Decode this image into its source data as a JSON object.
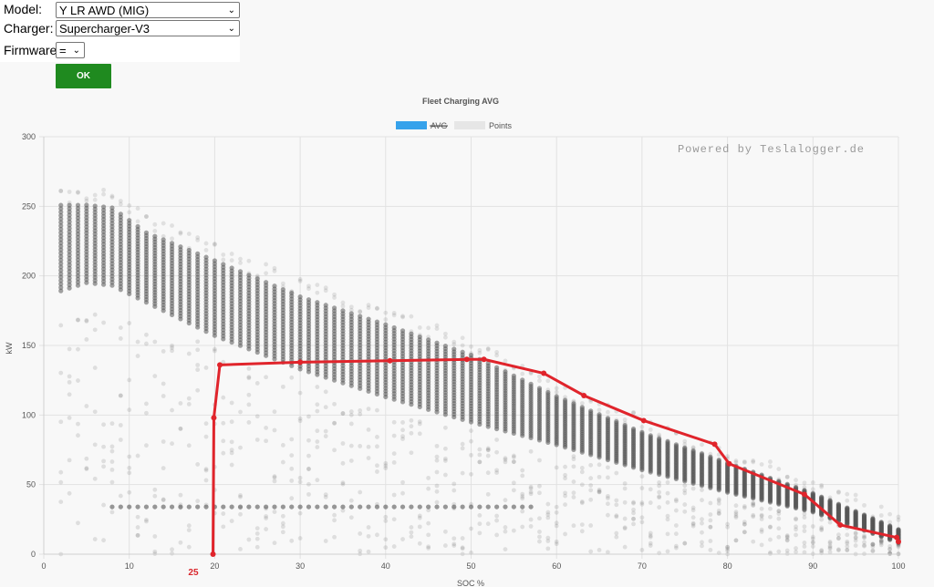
{
  "form": {
    "model_label": "Model:",
    "model_value": "Y LR AWD (MIG)",
    "charger_label": "Charger:",
    "charger_value": "Supercharger-V3",
    "firmware_label": "Firmware:",
    "firmware_value": "=",
    "ok_label": "OK"
  },
  "colors": {
    "avg_line": "#e0242b",
    "avg_legend": "#36a2eb",
    "points": "#555555",
    "ok_button": "#1f8a1f"
  },
  "chart_data": {
    "type": "scatter",
    "title": "Fleet Charging AVG",
    "watermark": "Powered by Teslalogger.de",
    "xlabel": "SOC %",
    "ylabel": "kW",
    "xlim": [
      0,
      100
    ],
    "ylim": [
      0,
      300
    ],
    "xticks": [
      0,
      10,
      20,
      30,
      40,
      50,
      60,
      70,
      80,
      90,
      100
    ],
    "yticks": [
      0,
      50,
      100,
      150,
      200,
      250,
      300
    ],
    "grid": true,
    "legend": {
      "placement": "top",
      "entries": [
        {
          "name": "AVG",
          "hidden": true
        },
        {
          "name": "Points",
          "hidden": false
        }
      ]
    },
    "annotation": {
      "text": "25",
      "x": 17.5
    },
    "series": [
      {
        "name": "AVG",
        "kind": "line",
        "points": [
          [
            19.8,
            0
          ],
          [
            19.9,
            98
          ],
          [
            20.6,
            136
          ],
          [
            30,
            138
          ],
          [
            40.5,
            139
          ],
          [
            49.5,
            140
          ],
          [
            51.5,
            140
          ],
          [
            58.5,
            130
          ],
          [
            63.2,
            114
          ],
          [
            70.2,
            96
          ],
          [
            78.5,
            79
          ],
          [
            80.2,
            65
          ],
          [
            89,
            43
          ],
          [
            93.2,
            21
          ],
          [
            99.8,
            12
          ],
          [
            100,
            9
          ]
        ]
      },
      {
        "name": "Points",
        "kind": "scatter-cloud",
        "upper": [
          [
            2,
            252
          ],
          [
            5,
            252
          ],
          [
            8,
            250
          ],
          [
            12,
            232
          ],
          [
            20,
            212
          ],
          [
            30,
            186
          ],
          [
            40,
            166
          ],
          [
            50,
            144
          ],
          [
            60,
            114
          ],
          [
            70,
            88
          ],
          [
            80,
            66
          ],
          [
            90,
            44
          ],
          [
            100,
            18
          ]
        ],
        "lower": [
          [
            2,
            188
          ],
          [
            5,
            194
          ],
          [
            8,
            192
          ],
          [
            12,
            180
          ],
          [
            20,
            156
          ],
          [
            30,
            132
          ],
          [
            40,
            112
          ],
          [
            50,
            94
          ],
          [
            60,
            78
          ],
          [
            70,
            60
          ],
          [
            80,
            44
          ],
          [
            90,
            30
          ],
          [
            100,
            8
          ]
        ]
      }
    ]
  }
}
